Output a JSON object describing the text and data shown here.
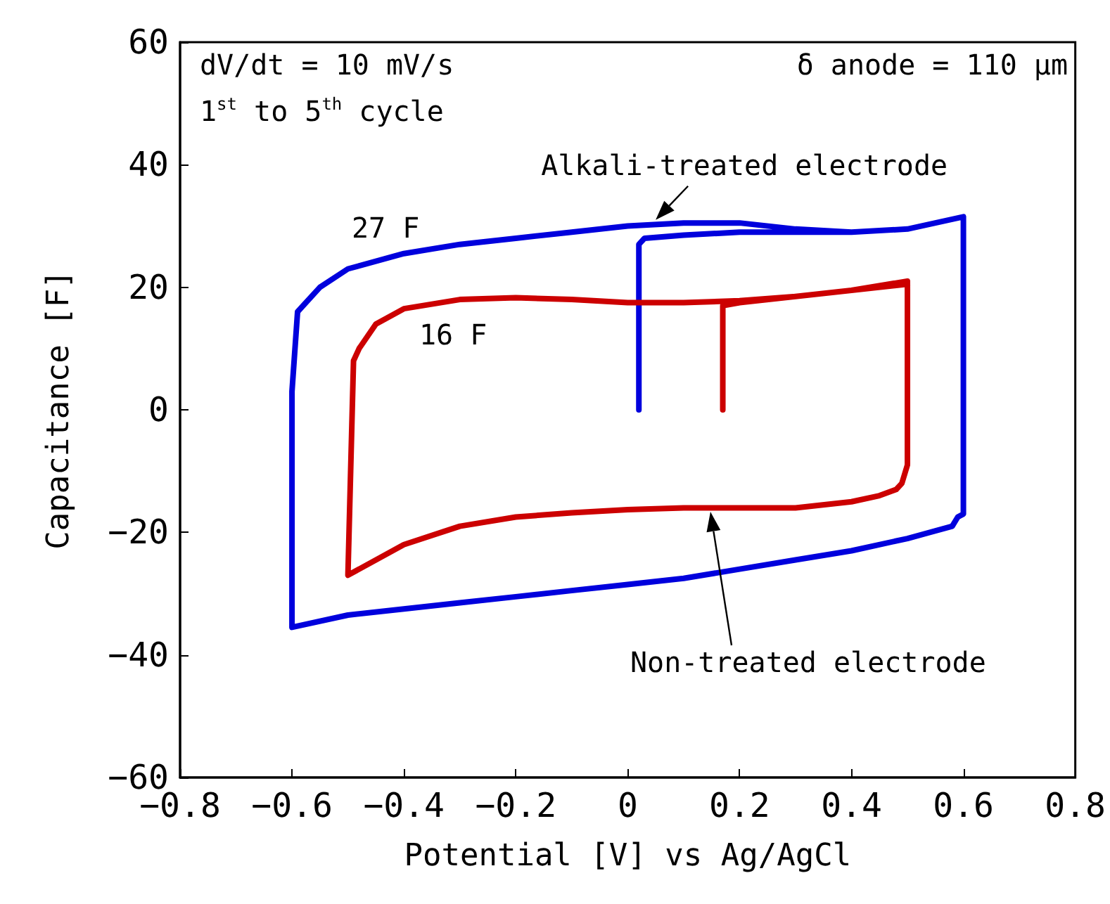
{
  "chart_data": {
    "type": "line",
    "xlabel": "Potential [V] vs Ag/AgCl",
    "ylabel": "Capacitance [F]",
    "xlim": [
      -0.8,
      0.8
    ],
    "ylim": [
      -60,
      60
    ],
    "xticks": [
      {
        "value": -0.8,
        "label": "−0.8"
      },
      {
        "value": -0.6,
        "label": "−0.6"
      },
      {
        "value": -0.4,
        "label": "−0.4"
      },
      {
        "value": -0.2,
        "label": "−0.2"
      },
      0,
      {
        "value": 0.2,
        "label": "0.2"
      },
      {
        "value": 0.4,
        "label": "0.4"
      },
      {
        "value": 0.6,
        "label": "0.6"
      },
      {
        "value": 0.8,
        "label": "0.8"
      }
    ],
    "yticks": [
      {
        "value": -60,
        "label": "−60"
      },
      {
        "value": -40,
        "label": "−40"
      },
      {
        "value": -20,
        "label": "−20"
      },
      0,
      20,
      40,
      60
    ],
    "grid": false,
    "marker": "none",
    "line_style": "solid",
    "series": [
      {
        "color": "#0000dd",
        "x": [
          0.02,
          0.02,
          0.03,
          0.1,
          0.2,
          0.3,
          0.4,
          0.5,
          0.6,
          0.6,
          0.59,
          0.58,
          0.5,
          0.4,
          0.3,
          0.2,
          0.1,
          0,
          -0.1,
          -0.2,
          -0.3,
          -0.4,
          -0.5,
          -0.6,
          -0.6,
          -0.59,
          -0.58,
          -0.55,
          -0.5,
          -0.4,
          -0.3,
          -0.2,
          -0.1,
          0,
          0.1,
          0.2,
          0.3,
          0.4,
          0.5,
          0.6
        ],
        "values": [
          0,
          27,
          28,
          28.5,
          29,
          29,
          29,
          29.5,
          31.5,
          -17,
          -17.5,
          -19,
          -21,
          -23,
          -24.5,
          -26,
          -27.5,
          -28.5,
          -29.5,
          -30.5,
          -31.5,
          -32.5,
          -33.5,
          -35.5,
          3,
          16,
          17,
          20,
          23,
          25.5,
          27,
          28,
          29,
          30,
          30.5,
          30.5,
          29.5,
          29,
          29.5,
          31.5
        ]
      },
      {
        "color": "#cc0000",
        "x": [
          0.17,
          0.17,
          0.2,
          0.3,
          0.4,
          0.5,
          0.5,
          0.49,
          0.48,
          0.45,
          0.4,
          0.3,
          0.2,
          0.1,
          0,
          -0.1,
          -0.2,
          -0.3,
          -0.4,
          -0.5,
          -0.49,
          -0.48,
          -0.45,
          -0.4,
          -0.3,
          -0.2,
          -0.1,
          0,
          0.1,
          0.2,
          0.3,
          0.4,
          0.5
        ],
        "values": [
          0,
          17,
          17.5,
          18.5,
          19.5,
          21,
          -9,
          -12,
          -13,
          -14,
          -15,
          -16,
          -16,
          -16,
          -16.3,
          -16.8,
          -17.5,
          -19,
          -22,
          -27,
          8,
          10,
          14,
          16.5,
          18,
          18.3,
          18,
          17.5,
          17.5,
          17.8,
          18.5,
          19.5,
          20.5
        ]
      }
    ],
    "annotations": [
      "dV/dt = 10 mV/s",
      "1$^{st}$ to 5$^{th}$ cycle",
      "δ anode = 110 μm",
      "27 F",
      "16 F",
      {
        "text": "Alkali-treated electrode",
        "x": 0.05,
        "y": 31
      },
      "Non-treated electrode"
    ]
  }
}
